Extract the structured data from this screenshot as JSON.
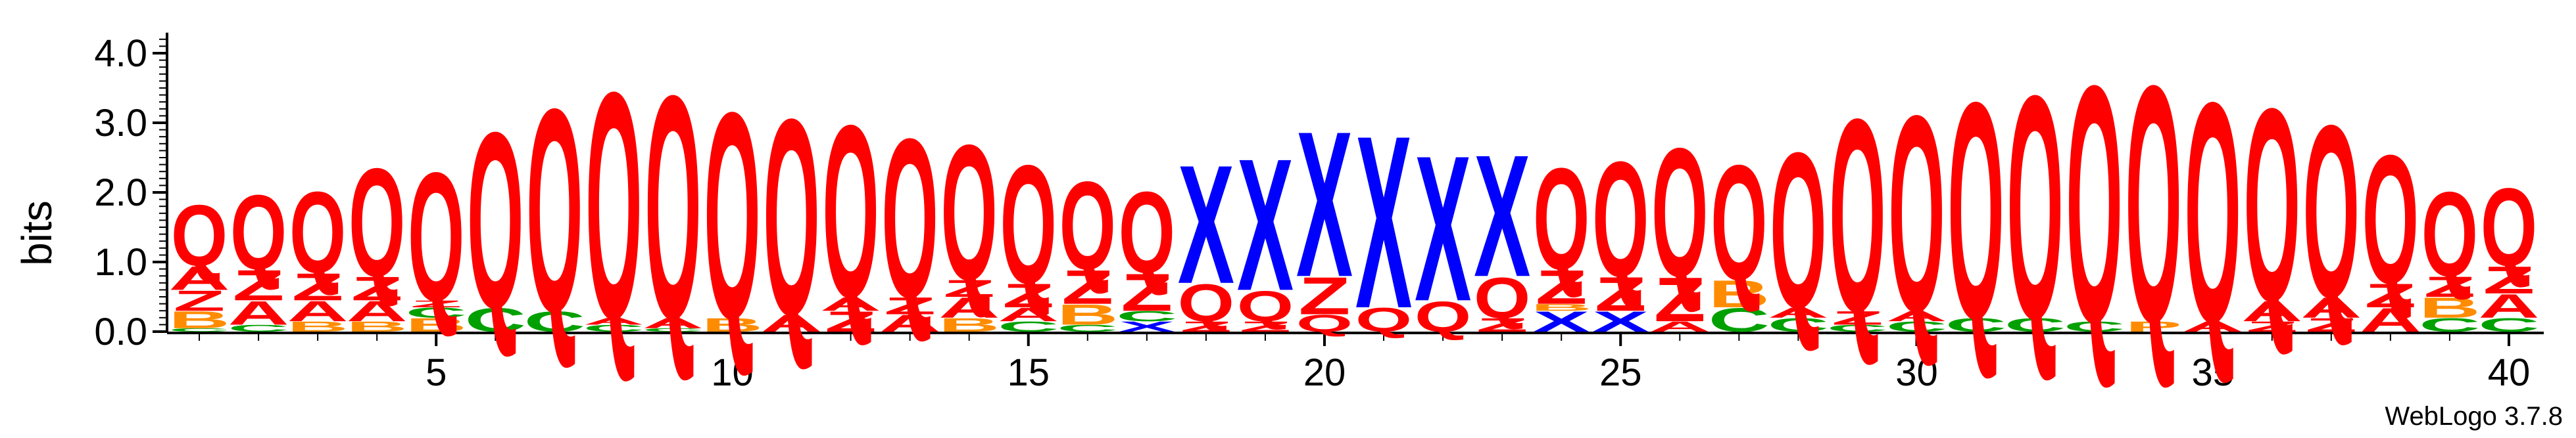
{
  "chart_data": {
    "type": "sequence-logo",
    "ylabel": "bits",
    "ylim": [
      0,
      4.2
    ],
    "y_ticks": [
      {
        "value": 0,
        "label": "0.0"
      },
      {
        "value": 1,
        "label": "1.0"
      },
      {
        "value": 2,
        "label": "2.0"
      },
      {
        "value": 3,
        "label": "3.0"
      },
      {
        "value": 4,
        "label": "4.0"
      }
    ],
    "x_ticks": [
      {
        "value": 5,
        "label": "5"
      },
      {
        "value": 10,
        "label": "10"
      },
      {
        "value": 15,
        "label": "15"
      },
      {
        "value": 20,
        "label": "20"
      },
      {
        "value": 25,
        "label": "25"
      },
      {
        "value": 30,
        "label": "30"
      },
      {
        "value": 35,
        "label": "35"
      },
      {
        "value": 40,
        "label": "40"
      }
    ],
    "positions": 40,
    "colors": {
      "Q": "#ff0000",
      "A": "#ff0000",
      "Z": "#ff0000",
      "X": "#0000ff",
      "B": "#ff8c00",
      "C": "#00a000",
      "P": "#ff8c00",
      "D": "#7a3fa8"
    },
    "columns": [
      [
        [
          "C",
          0.05
        ],
        [
          "B",
          0.25
        ],
        [
          "Z",
          0.3
        ],
        [
          "A",
          0.35
        ],
        [
          "Q",
          0.9
        ]
      ],
      [
        [
          "C",
          0.1
        ],
        [
          "A",
          0.35
        ],
        [
          "Z",
          0.45
        ],
        [
          "Q",
          1.1
        ]
      ],
      [
        [
          "B",
          0.15
        ],
        [
          "A",
          0.3
        ],
        [
          "Z",
          0.4
        ],
        [
          "Q",
          1.2
        ]
      ],
      [
        [
          "B",
          0.15
        ],
        [
          "A",
          0.3
        ],
        [
          "Z",
          0.35
        ],
        [
          "Q",
          1.6
        ]
      ],
      [
        [
          "B",
          0.2
        ],
        [
          "C",
          0.15
        ],
        [
          "Z",
          0.1
        ],
        [
          "Q",
          1.9
        ]
      ],
      [
        [
          "C",
          0.35
        ],
        [
          "Q",
          2.6
        ]
      ],
      [
        [
          "C",
          0.3
        ],
        [
          "Q",
          3.0
        ]
      ],
      [
        [
          "C",
          0.1
        ],
        [
          "A",
          0.1
        ],
        [
          "Q",
          3.35
        ]
      ],
      [
        [
          "C",
          0.05
        ],
        [
          "A",
          0.15
        ],
        [
          "Q",
          3.3
        ]
      ],
      [
        [
          "B",
          0.2
        ],
        [
          "Q",
          3.05
        ]
      ],
      [
        [
          "A",
          0.25
        ],
        [
          "Q",
          2.9
        ]
      ],
      [
        [
          "Z",
          0.3
        ],
        [
          "A",
          0.2
        ],
        [
          "Q",
          2.55
        ]
      ],
      [
        [
          "A",
          0.25
        ],
        [
          "Z",
          0.25
        ],
        [
          "Q",
          2.35
        ]
      ],
      [
        [
          "B",
          0.2
        ],
        [
          "A",
          0.3
        ],
        [
          "Z",
          0.25
        ],
        [
          "Q",
          2.0
        ]
      ],
      [
        [
          "C",
          0.15
        ],
        [
          "A",
          0.2
        ],
        [
          "Z",
          0.35
        ],
        [
          "Q",
          1.75
        ]
      ],
      [
        [
          "C",
          0.1
        ],
        [
          "B",
          0.3
        ],
        [
          "Z",
          0.5
        ],
        [
          "Q",
          1.3
        ]
      ],
      [
        [
          "X",
          0.15
        ],
        [
          "C",
          0.15
        ],
        [
          "Z",
          0.55
        ],
        [
          "Q",
          1.2
        ]
      ],
      [
        [
          "Z",
          0.15
        ],
        [
          "Q",
          0.55
        ],
        [
          "X",
          1.75
        ]
      ],
      [
        [
          "Z",
          0.15
        ],
        [
          "Q",
          0.45
        ],
        [
          "X",
          1.95
        ]
      ],
      [
        [
          "Q",
          0.25
        ],
        [
          "Z",
          0.55
        ],
        [
          "X",
          2.15
        ]
      ],
      [
        [
          "Q",
          0.35
        ],
        [
          "X",
          2.55
        ]
      ],
      [
        [
          "Q",
          0.45
        ],
        [
          "X",
          2.15
        ]
      ],
      [
        [
          "Z",
          0.2
        ],
        [
          "Q",
          0.6
        ],
        [
          "X",
          1.8
        ]
      ],
      [
        [
          "X",
          0.3
        ],
        [
          "B",
          0.1
        ],
        [
          "Z",
          0.5
        ],
        [
          "Q",
          1.5
        ]
      ],
      [
        [
          "X",
          0.3
        ],
        [
          "Z",
          0.5
        ],
        [
          "Q",
          1.7
        ]
      ],
      [
        [
          "A",
          0.15
        ],
        [
          "Z",
          0.65
        ],
        [
          "Q",
          1.9
        ]
      ],
      [
        [
          "C",
          0.35
        ],
        [
          "B",
          0.4
        ],
        [
          "Q",
          1.7
        ]
      ],
      [
        [
          "C",
          0.2
        ],
        [
          "A",
          0.15
        ],
        [
          "Q",
          2.3
        ]
      ],
      [
        [
          "C",
          0.1
        ],
        [
          "Z",
          0.2
        ],
        [
          "Q",
          2.85
        ]
      ],
      [
        [
          "C",
          0.15
        ],
        [
          "A",
          0.15
        ],
        [
          "Q",
          2.9
        ]
      ],
      [
        [
          "C",
          0.2
        ],
        [
          "Q",
          3.2
        ]
      ],
      [
        [
          "C",
          0.2
        ],
        [
          "Q",
          3.3
        ]
      ],
      [
        [
          "C",
          0.15
        ],
        [
          "Q",
          3.5
        ]
      ],
      [
        [
          "P",
          0.15
        ],
        [
          "Q",
          3.5
        ]
      ],
      [
        [
          "A",
          0.15
        ],
        [
          "Q",
          3.25
        ]
      ],
      [
        [
          "Z",
          0.15
        ],
        [
          "A",
          0.3
        ],
        [
          "Q",
          2.85
        ]
      ],
      [
        [
          "Z",
          0.2
        ],
        [
          "A",
          0.3
        ],
        [
          "Q",
          2.55
        ]
      ],
      [
        [
          "A",
          0.35
        ],
        [
          "Z",
          0.35
        ],
        [
          "Q",
          1.9
        ]
      ],
      [
        [
          "C",
          0.2
        ],
        [
          "B",
          0.3
        ],
        [
          "Z",
          0.3
        ],
        [
          "Q",
          1.25
        ]
      ],
      [
        [
          "C",
          0.2
        ],
        [
          "A",
          0.35
        ],
        [
          "Z",
          0.4
        ],
        [
          "Q",
          1.15
        ]
      ]
    ]
  },
  "credit": "WebLogo 3.7.8"
}
